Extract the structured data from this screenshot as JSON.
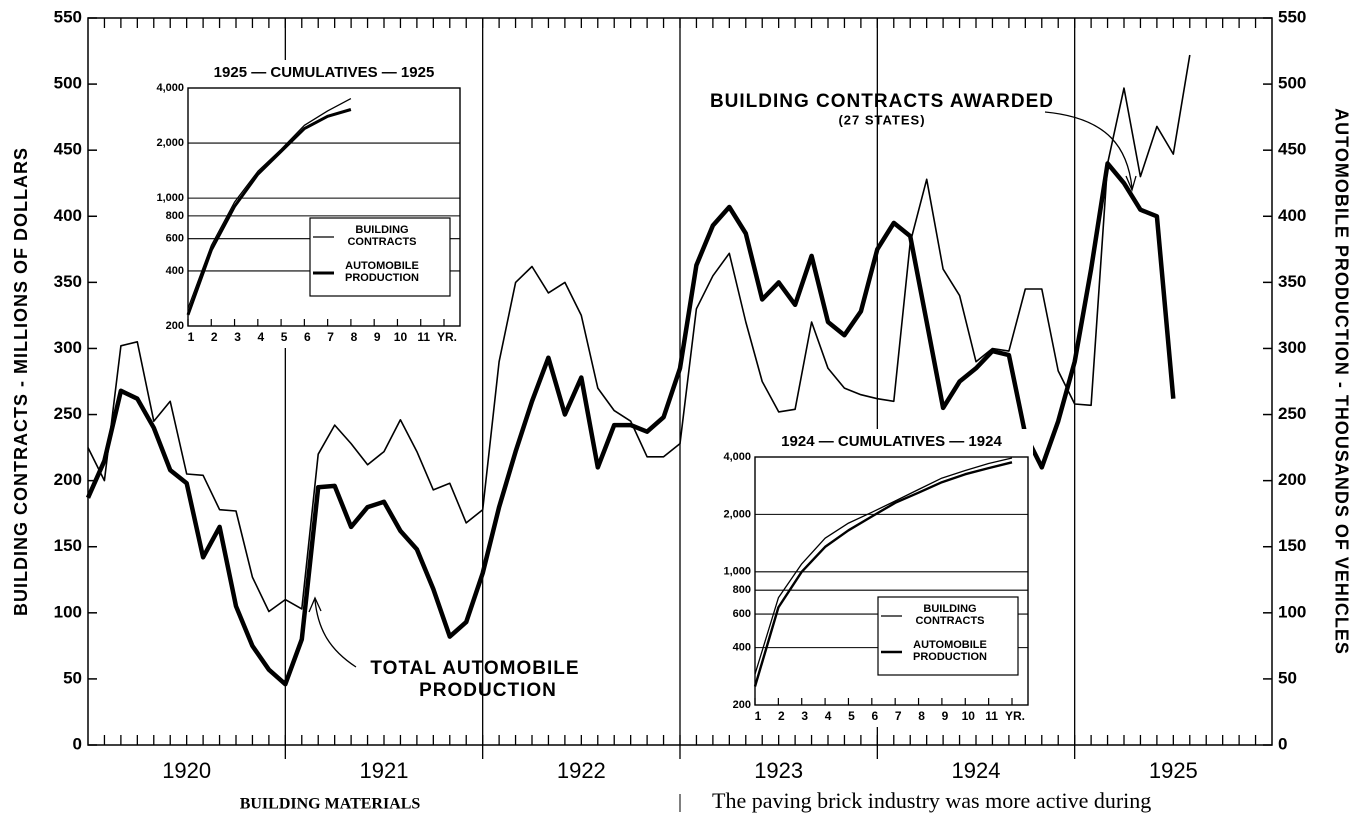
{
  "chart_data": [
    {
      "type": "line",
      "y_label": "BUILDING CONTRACTS - MILLIONS OF DOLLARS",
      "y2_label": "AUTOMOBILE PRODUCTION - THOUSANDS OF VEHICLES",
      "annotations": [
        "BUILDING CONTRACTS AWARDED",
        "(27 STATES)",
        "TOTAL AUTOMOBILE",
        "PRODUCTION"
      ],
      "xlim": [
        0,
        72
      ],
      "xticks": [
        {
          "value": 6,
          "label": "1920"
        },
        {
          "value": 18,
          "label": "1921"
        },
        {
          "value": 30,
          "label": "1922"
        },
        {
          "value": 42,
          "label": "1923"
        },
        {
          "value": 54,
          "label": "1924"
        },
        {
          "value": 66,
          "label": "1925"
        }
      ],
      "ylim": [
        0,
        550
      ],
      "yticks": [
        0,
        50,
        100,
        150,
        200,
        250,
        300,
        350,
        400,
        450,
        500,
        550
      ],
      "y2lim": [
        0,
        550
      ],
      "y2ticks": [
        0,
        50,
        100,
        150,
        200,
        250,
        300,
        350,
        400,
        450,
        500,
        550
      ],
      "x": [
        0,
        1,
        2,
        3,
        4,
        5,
        6,
        7,
        8,
        9,
        10,
        11,
        12,
        13,
        14,
        15,
        16,
        17,
        18,
        19,
        20,
        21,
        22,
        23,
        24,
        25,
        26,
        27,
        28,
        29,
        30,
        31,
        32,
        33,
        34,
        35,
        36,
        37,
        38,
        39,
        40,
        41,
        42,
        43,
        44,
        45,
        46,
        47,
        48,
        49,
        50,
        51,
        52,
        53,
        54,
        55,
        56,
        57,
        58,
        59,
        60,
        61,
        62,
        63,
        64,
        65,
        66,
        67
      ],
      "series": [
        {
          "name": "Building contracts",
          "color": "#000000",
          "width": 1.6,
          "values": [
            225,
            200,
            302,
            305,
            245,
            260,
            205,
            204,
            178,
            177,
            127,
            101,
            110,
            103,
            220,
            242,
            228,
            212,
            222,
            246,
            222,
            193,
            198,
            168,
            178,
            290,
            350,
            362,
            342,
            350,
            325,
            270,
            253,
            245,
            218,
            218,
            228,
            330,
            355,
            372,
            320,
            275,
            252,
            254,
            320,
            285,
            270,
            265,
            262,
            260,
            380,
            428,
            360,
            340,
            290,
            300,
            298,
            345,
            345,
            283,
            258,
            257,
            440,
            497,
            430,
            468,
            447,
            522
          ]
        },
        {
          "name": "Automobile production",
          "color": "#000000",
          "width": 4.5,
          "axis": "y2",
          "values": [
            187,
            215,
            268,
            262,
            240,
            208,
            198,
            142,
            165,
            105,
            75,
            57,
            46,
            80,
            195,
            196,
            165,
            180,
            184,
            162,
            148,
            118,
            82,
            93,
            130,
            180,
            222,
            260,
            293,
            250,
            278,
            210,
            242,
            242,
            237,
            248,
            285,
            363,
            393,
            407,
            387,
            337,
            350,
            333,
            370,
            320,
            310,
            328,
            375,
            395,
            385,
            320,
            255,
            275,
            285,
            298,
            295,
            235,
            210,
            245,
            290,
            360,
            440,
            425,
            405,
            400,
            262,
            null
          ]
        }
      ]
    },
    {
      "type": "line",
      "title": "1925 — CUMULATIVES — 1925",
      "log_y": true,
      "grid": true,
      "legend": "lower right",
      "xlim": [
        1,
        12
      ],
      "xticks": [
        1,
        2,
        3,
        4,
        5,
        6,
        7,
        8,
        9,
        10,
        11,
        {
          "value": 12,
          "label": "YR."
        }
      ],
      "ylim": [
        200,
        4000
      ],
      "yticks": [
        200,
        400,
        600,
        800,
        {
          "value": 1000,
          "label": "1,000"
        },
        {
          "value": 2000,
          "label": "2,000"
        },
        {
          "value": 4000,
          "label": "4,000"
        }
      ],
      "x": [
        1,
        2,
        3,
        4,
        5,
        6,
        7,
        8
      ],
      "series": [
        {
          "name": "BUILDING CONTRACTS",
          "color": "#000000",
          "width": 1.3,
          "values": [
            250,
            550,
            950,
            1400,
            1850,
            2500,
            3000,
            3500
          ]
        },
        {
          "name": "AUTOMOBILE PRODUCTION",
          "color": "#000000",
          "width": 3,
          "values": [
            230,
            520,
            900,
            1350,
            1800,
            2400,
            2800,
            3050
          ]
        }
      ]
    },
    {
      "type": "line",
      "title": "1924 — CUMULATIVES — 1924",
      "log_y": true,
      "grid": true,
      "legend": "lower right",
      "xlim": [
        1,
        12
      ],
      "xticks": [
        1,
        2,
        3,
        4,
        5,
        6,
        7,
        8,
        9,
        10,
        11,
        {
          "value": 12,
          "label": "YR."
        }
      ],
      "ylim": [
        200,
        4000
      ],
      "yticks": [
        200,
        400,
        600,
        800,
        {
          "value": 1000,
          "label": "1,000"
        },
        {
          "value": 2000,
          "label": "2,000"
        },
        {
          "value": 4000,
          "label": "4,000"
        }
      ],
      "x": [
        1,
        2,
        3,
        4,
        5,
        6,
        7,
        8,
        9,
        10,
        11,
        12
      ],
      "series": [
        {
          "name": "BUILDING CONTRACTS",
          "color": "#000000",
          "width": 1.3,
          "values": [
            290,
            730,
            1100,
            1500,
            1800,
            2050,
            2350,
            2700,
            3100,
            3400,
            3700,
            3950
          ]
        },
        {
          "name": "AUTOMOBILE PRODUCTION",
          "color": "#000000",
          "width": 2.4,
          "values": [
            250,
            650,
            1000,
            1350,
            1650,
            1950,
            2300,
            2600,
            2950,
            3250,
            3500,
            3750
          ]
        }
      ]
    }
  ],
  "below": {
    "heading": "BUILDING MATERIALS",
    "body": "The paving brick industry was more active during"
  }
}
